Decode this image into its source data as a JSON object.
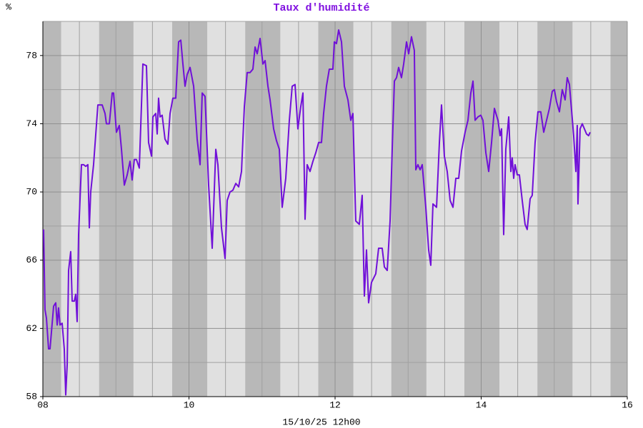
{
  "chart_data": {
    "type": "line",
    "title": "Taux d'humidité",
    "ylabel": "%",
    "xlabel": "15/10/25 12h00",
    "xlim": [
      8,
      16
    ],
    "ylim": [
      58,
      80
    ],
    "xticks": [
      {
        "value": 8,
        "label": "08"
      },
      10,
      12,
      14,
      16
    ],
    "yticks": [
      58,
      62,
      66,
      70,
      74,
      78
    ],
    "minor_xticks": [
      8.5,
      9,
      9.5,
      10.5,
      11,
      11.5,
      12.5,
      13,
      13.5,
      14.5,
      15,
      15.5
    ],
    "minor_yticks": [
      60,
      64,
      68,
      72,
      76,
      80
    ],
    "grid": true,
    "shaded_ranges": [
      [
        8,
        8.25
      ],
      [
        8.77,
        9.24
      ],
      [
        9.77,
        10.25
      ],
      [
        10.77,
        11.25
      ],
      [
        11.77,
        12.25
      ],
      [
        12.77,
        13.25
      ],
      [
        13.77,
        14.25
      ],
      [
        14.77,
        15.25
      ],
      [
        15.77,
        16
      ]
    ],
    "background_color": "#e0e0e0",
    "shade_color": "#b8b8b8",
    "series": [
      {
        "name": "Taux d'humidité",
        "color": "#7010d8",
        "x": [
          8.01,
          8.029,
          8.049,
          8.078,
          8.098,
          8.147,
          8.176,
          8.196,
          8.215,
          8.235,
          8.264,
          8.293,
          8.313,
          8.333,
          8.352,
          8.381,
          8.401,
          8.43,
          8.45,
          8.469,
          8.489,
          8.528,
          8.557,
          8.587,
          8.616,
          8.636,
          8.655,
          8.694,
          8.753,
          8.812,
          8.851,
          8.87,
          8.91,
          8.949,
          8.968,
          9.007,
          9.046,
          9.076,
          9.115,
          9.154,
          9.193,
          9.222,
          9.252,
          9.281,
          9.32,
          9.369,
          9.418,
          9.447,
          9.487,
          9.506,
          9.545,
          9.565,
          9.584,
          9.604,
          9.633,
          9.672,
          9.711,
          9.741,
          9.78,
          9.819,
          9.858,
          9.888,
          9.917,
          9.946,
          9.976,
          10.015,
          10.064,
          10.112,
          10.152,
          10.181,
          10.22,
          10.269,
          10.318,
          10.367,
          10.396,
          10.445,
          10.494,
          10.523,
          10.562,
          10.601,
          10.641,
          10.68,
          10.719,
          10.758,
          10.797,
          10.836,
          10.875,
          10.905,
          10.934,
          10.973,
          11.012,
          11.042,
          11.081,
          11.11,
          11.159,
          11.198,
          11.237,
          11.276,
          11.325,
          11.374,
          11.413,
          11.452,
          11.491,
          11.53,
          11.56,
          11.589,
          11.618,
          11.657,
          11.697,
          11.736,
          11.775,
          11.814,
          11.843,
          11.882,
          11.921,
          11.97,
          11.99,
          12.019,
          12.049,
          12.088,
          12.127,
          12.176,
          12.215,
          12.244,
          12.283,
          12.332,
          12.371,
          12.401,
          12.43,
          12.459,
          12.499,
          12.557,
          12.596,
          12.645,
          12.675,
          12.714,
          12.753,
          12.782,
          12.812,
          12.841,
          12.87,
          12.909,
          12.939,
          12.978,
          13.007,
          13.046,
          13.085,
          13.105,
          13.134,
          13.164,
          13.193,
          13.242,
          13.281,
          13.31,
          13.34,
          13.389,
          13.428,
          13.457,
          13.496,
          13.535,
          13.575,
          13.614,
          13.653,
          13.692,
          13.731,
          13.78,
          13.819,
          13.858,
          13.888,
          13.917,
          13.956,
          13.995,
          14.024,
          14.064,
          14.103,
          14.142,
          14.181,
          14.23,
          14.259,
          14.279,
          14.308,
          14.337,
          14.377,
          14.406,
          14.425,
          14.445,
          14.464,
          14.494,
          14.523,
          14.562,
          14.601,
          14.63,
          14.67,
          14.699,
          14.738,
          14.777,
          14.816,
          14.856,
          14.895,
          14.934,
          14.973,
          15.002,
          15.031,
          15.071,
          15.11,
          15.149,
          15.178,
          15.208,
          15.237,
          15.266,
          15.296,
          15.315,
          15.325,
          15.354,
          15.384,
          15.413,
          15.442,
          15.471,
          15.491
        ],
        "values": [
          67.8,
          63.1,
          62.6,
          60.8,
          60.8,
          63.3,
          63.5,
          62.2,
          63.2,
          62.2,
          62.3,
          60.8,
          58.1,
          59.9,
          65.4,
          66.5,
          63.6,
          63.6,
          64.0,
          62.4,
          67.5,
          71.6,
          71.6,
          71.5,
          71.6,
          67.9,
          70.0,
          71.6,
          75.1,
          75.1,
          74.6,
          74.0,
          74.0,
          75.8,
          75.8,
          73.5,
          73.9,
          72.5,
          70.4,
          71.0,
          71.8,
          70.7,
          71.9,
          71.9,
          71.4,
          77.5,
          77.4,
          72.9,
          72.1,
          74.4,
          74.6,
          73.4,
          75.5,
          74.4,
          74.5,
          73.1,
          72.8,
          74.6,
          75.5,
          75.5,
          78.8,
          78.9,
          77.5,
          76.2,
          76.9,
          77.3,
          76.2,
          73.1,
          71.6,
          75.8,
          75.6,
          70.4,
          66.7,
          72.5,
          71.6,
          67.9,
          66.1,
          69.5,
          70.0,
          70.1,
          70.5,
          70.3,
          71.2,
          75.0,
          77.0,
          77.0,
          77.2,
          78.5,
          78.1,
          79.0,
          77.5,
          77.7,
          76.2,
          75.4,
          73.7,
          73.0,
          72.5,
          69.1,
          70.8,
          74.2,
          76.2,
          76.3,
          73.7,
          75.0,
          75.8,
          68.4,
          71.6,
          71.2,
          71.8,
          72.3,
          72.9,
          72.9,
          74.6,
          76.2,
          77.2,
          77.2,
          78.8,
          78.7,
          79.5,
          78.8,
          76.2,
          75.4,
          74.2,
          74.6,
          68.3,
          68.1,
          69.8,
          63.9,
          66.6,
          63.5,
          64.7,
          65.2,
          66.7,
          66.7,
          65.6,
          65.4,
          68.3,
          72.5,
          76.5,
          76.7,
          77.3,
          76.7,
          77.5,
          78.8,
          78.1,
          79.1,
          78.3,
          71.3,
          71.6,
          71.3,
          71.6,
          69.1,
          66.6,
          65.7,
          69.3,
          69.1,
          72.9,
          75.1,
          72.1,
          71.2,
          69.5,
          69.1,
          70.8,
          70.8,
          72.4,
          73.5,
          74.2,
          75.8,
          76.5,
          74.2,
          74.4,
          74.5,
          74.2,
          72.3,
          71.2,
          72.9,
          74.9,
          74.2,
          73.3,
          73.7,
          67.5,
          72.5,
          74.4,
          71.2,
          72.0,
          70.8,
          71.6,
          71.0,
          71.0,
          69.5,
          68.1,
          67.8,
          69.6,
          69.8,
          72.9,
          74.7,
          74.7,
          73.5,
          74.2,
          74.9,
          75.9,
          76.0,
          75.3,
          74.7,
          76.0,
          75.4,
          76.7,
          76.3,
          74.8,
          73.3,
          71.2,
          73.9,
          69.3,
          73.7,
          74.0,
          73.7,
          73.4,
          73.3,
          73.5
        ]
      }
    ]
  }
}
